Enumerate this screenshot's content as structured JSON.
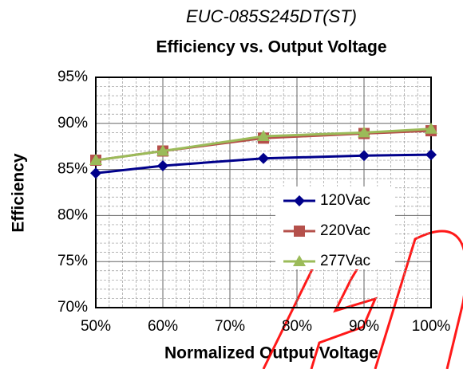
{
  "chart_data": {
    "type": "line",
    "title": "EUC-085S245DT(ST)",
    "subtitle": "Efficiency vs. Output Voltage",
    "x_label": "Normalized Output Voltage",
    "y_label": "Efficiency",
    "x": [
      50,
      60,
      75,
      90,
      100
    ],
    "series": [
      {
        "name": "120Vac",
        "color": "#00008b",
        "marker": "diamond",
        "values": [
          84.6,
          85.4,
          86.2,
          86.5,
          86.6
        ]
      },
      {
        "name": "220Vac",
        "color": "#b5504b",
        "marker": "square",
        "values": [
          86.0,
          87.0,
          88.4,
          88.9,
          89.2
        ]
      },
      {
        "name": "277Vac",
        "color": "#9bbb59",
        "marker": "triangle",
        "values": [
          86.0,
          87.0,
          88.6,
          89.0,
          89.4
        ]
      }
    ],
    "xlim": [
      50,
      100
    ],
    "ylim": [
      70,
      95
    ],
    "xticks": [
      {
        "value": 50,
        "label": "50%"
      },
      {
        "value": 60,
        "label": "60%"
      },
      {
        "value": 70,
        "label": "70%"
      },
      {
        "value": 80,
        "label": "80%"
      },
      {
        "value": 90,
        "label": "90%"
      },
      {
        "value": 100,
        "label": "100%"
      }
    ],
    "yticks": [
      {
        "value": 70,
        "label": "70%"
      },
      {
        "value": 75,
        "label": "75%"
      },
      {
        "value": 80,
        "label": "80%"
      },
      {
        "value": 85,
        "label": "85%"
      },
      {
        "value": 90,
        "label": "90%"
      },
      {
        "value": 95,
        "label": "95%"
      }
    ],
    "grid": true,
    "legend": "right"
  }
}
